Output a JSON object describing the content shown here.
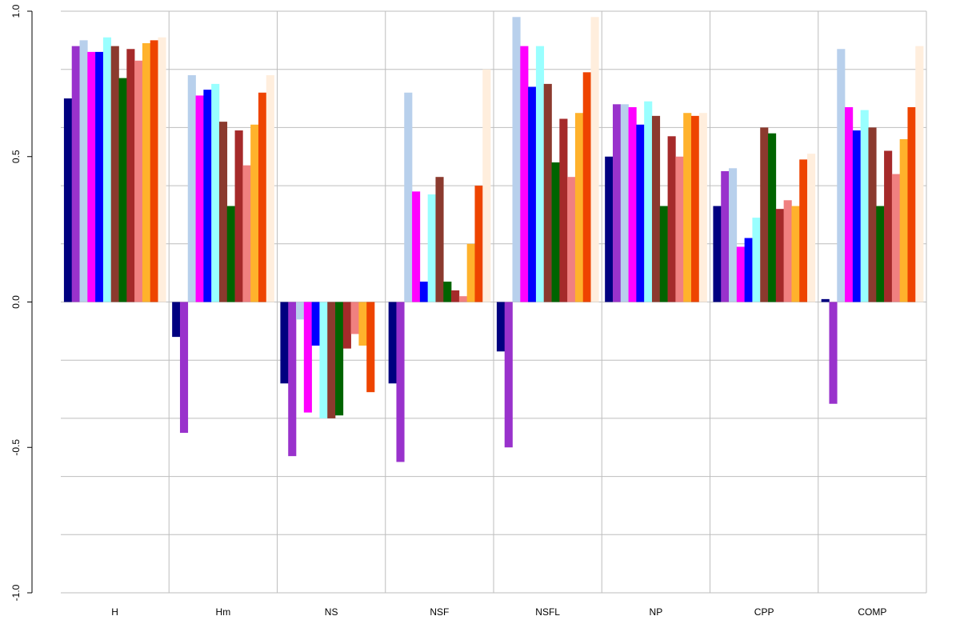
{
  "chart_data": {
    "type": "bar",
    "title": "",
    "xlabel": "",
    "ylabel": "",
    "ylim": [
      -1.0,
      1.0
    ],
    "yticks": [
      -1.0,
      -0.5,
      0.0,
      0.5,
      1.0
    ],
    "ytick_labels": [
      "-1.0",
      "-0.5",
      "0.0",
      "0.5",
      "1.0"
    ],
    "grid": true,
    "legend": "none",
    "categories": [
      "H",
      "Hm",
      "NS",
      "NSF",
      "NSFL",
      "NP",
      "CPP",
      "COMP"
    ],
    "series": [
      {
        "color": "#000080",
        "values": [
          0.7,
          -0.12,
          -0.28,
          -0.28,
          -0.17,
          0.5,
          0.33,
          0.01
        ]
      },
      {
        "color": "#9932CC",
        "values": [
          0.88,
          -0.45,
          -0.53,
          -0.55,
          -0.5,
          0.68,
          0.45,
          -0.35
        ]
      },
      {
        "color": "#B8D0EC",
        "values": [
          0.9,
          0.78,
          -0.06,
          0.72,
          0.98,
          0.68,
          0.46,
          0.87
        ]
      },
      {
        "color": "#FF00FF",
        "values": [
          0.86,
          0.71,
          -0.38,
          0.38,
          0.88,
          0.67,
          0.19,
          0.67
        ]
      },
      {
        "color": "#0000FF",
        "values": [
          0.86,
          0.73,
          -0.15,
          0.07,
          0.74,
          0.61,
          0.22,
          0.59
        ]
      },
      {
        "color": "#99FFFF",
        "values": [
          0.91,
          0.75,
          -0.4,
          0.37,
          0.88,
          0.69,
          0.29,
          0.66
        ]
      },
      {
        "color": "#8B3A2E",
        "values": [
          0.88,
          0.62,
          -0.4,
          0.43,
          0.75,
          0.64,
          0.6,
          0.6
        ]
      },
      {
        "color": "#006400",
        "values": [
          0.77,
          0.33,
          -0.39,
          0.07,
          0.48,
          0.33,
          0.58,
          0.33
        ]
      },
      {
        "color": "#A52A2A",
        "values": [
          0.87,
          0.59,
          -0.16,
          0.04,
          0.63,
          0.57,
          0.32,
          0.52
        ]
      },
      {
        "color": "#F08080",
        "values": [
          0.83,
          0.47,
          -0.11,
          0.02,
          0.43,
          0.5,
          0.35,
          0.44
        ]
      },
      {
        "color": "#FFB22C",
        "values": [
          0.89,
          0.61,
          -0.15,
          0.2,
          0.65,
          0.65,
          0.33,
          0.56
        ]
      },
      {
        "color": "#EE4400",
        "values": [
          0.9,
          0.72,
          -0.31,
          0.4,
          0.79,
          0.64,
          0.49,
          0.67
        ]
      },
      {
        "color": "#FFEEDD",
        "values": [
          0.91,
          0.78,
          0.0,
          0.8,
          0.98,
          0.65,
          0.51,
          0.88
        ]
      }
    ]
  }
}
